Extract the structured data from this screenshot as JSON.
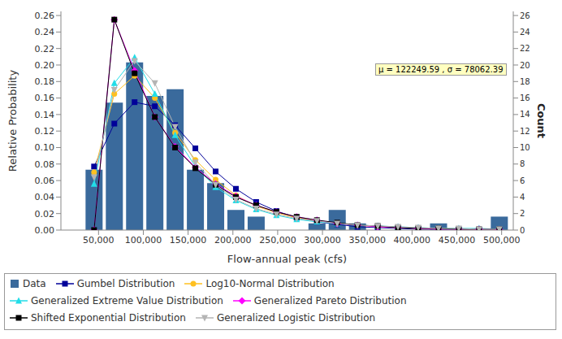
{
  "chart_data": {
    "type": "bar",
    "x_label": "Flow-annual peak (cfs)",
    "y_label": "Relative Probability",
    "y2_label": "Count",
    "annotation": "μ = 122249.59 , σ = 78062.39",
    "legend": "bottom",
    "bins": [
      33700,
      56320,
      78940,
      101560,
      124180,
      146800,
      169420,
      192040,
      214660,
      237280,
      259900,
      282520,
      305140,
      327760,
      350380,
      373000,
      395620,
      418240,
      440860,
      463480,
      486100,
      508720
    ],
    "xlim": [
      8000,
      513000
    ],
    "xticks": [
      {
        "value": 50000,
        "label": "50,000"
      },
      {
        "value": 100000,
        "label": "100,000"
      },
      {
        "value": 150000,
        "label": "150,000"
      },
      {
        "value": 200000,
        "label": "200,000"
      },
      {
        "value": 250000,
        "label": "250,000"
      },
      {
        "value": 300000,
        "label": "300,000"
      },
      {
        "value": 350000,
        "label": "350,000"
      },
      {
        "value": 400000,
        "label": "400,000"
      },
      {
        "value": 450000,
        "label": "450,000"
      },
      {
        "value": 500000,
        "label": "500,000"
      }
    ],
    "ylim": [
      0,
      0.265
    ],
    "yticks": [
      {
        "value": 0,
        "label": "0.00"
      },
      {
        "value": 0.02,
        "label": "0.02"
      },
      {
        "value": 0.04,
        "label": "0.04"
      },
      {
        "value": 0.06,
        "label": "0.06"
      },
      {
        "value": 0.08,
        "label": "0.08"
      },
      {
        "value": 0.1,
        "label": "0.10"
      },
      {
        "value": 0.12,
        "label": "0.12"
      },
      {
        "value": 0.14,
        "label": "0.14"
      },
      {
        "value": 0.16,
        "label": "0.16"
      },
      {
        "value": 0.18,
        "label": "0.18"
      },
      {
        "value": 0.2,
        "label": "0.20"
      },
      {
        "value": 0.22,
        "label": "0.22"
      },
      {
        "value": 0.24,
        "label": "0.24"
      },
      {
        "value": 0.26,
        "label": "0.26"
      }
    ],
    "y2lim": [
      0,
      26.5
    ],
    "y2ticks": [
      0,
      2,
      4,
      6,
      8,
      10,
      12,
      14,
      16,
      18,
      20,
      22,
      24,
      26
    ],
    "series": [
      {
        "name": "Data",
        "type": "bar",
        "color": "#3a6a9c",
        "values": [
          0.0732,
          0.1545,
          0.2033,
          0.1626,
          0.1707,
          0.0732,
          0.0569,
          0.0244,
          0.0163,
          0,
          0,
          0.0081,
          0.0244,
          0.0081,
          0,
          0,
          0,
          0.0081,
          0,
          0,
          0.0163
        ]
      },
      {
        "name": "Gumbel Distribution",
        "type": "line",
        "color": "#000099",
        "marker": "square",
        "values": [
          0.077,
          0.129,
          0.155,
          0.15,
          0.127,
          0.099,
          0.071,
          0.05,
          0.034,
          0.023,
          0.015,
          0.01,
          0.007,
          0.004,
          0.003,
          0.002,
          0.001,
          0.001,
          0.0005,
          0.0003,
          0.0002
        ]
      },
      {
        "name": "Log10-Normal Distribution",
        "type": "line",
        "color": "#ffc020",
        "marker": "circle",
        "values": [
          0.07,
          0.165,
          0.187,
          0.16,
          0.118,
          0.085,
          0.061,
          0.042,
          0.029,
          0.021,
          0.015,
          0.011,
          0.008,
          0.006,
          0.004,
          0.003,
          0.002,
          0.002,
          0.001,
          0.001,
          0.001
        ]
      },
      {
        "name": "Generalized Extreme Value Distribution",
        "type": "line",
        "color": "#22dde8",
        "marker": "triangle",
        "values": [
          0.056,
          0.178,
          0.209,
          0.165,
          0.115,
          0.077,
          0.052,
          0.036,
          0.025,
          0.018,
          0.013,
          0.01,
          0.008,
          0.006,
          0.005,
          0.004,
          0.003,
          0.002,
          0.002,
          0.002,
          0.001
        ]
      },
      {
        "name": "Generalized Pareto Distribution",
        "type": "line",
        "color": "#ff00ff",
        "marker": "diamond",
        "values": [
          0,
          0.255,
          0.193,
          0.137,
          0.101,
          0.076,
          0.056,
          0.041,
          0.03,
          0.022,
          0.016,
          0.012,
          0.008,
          0.006,
          0.004,
          0.003,
          0.002,
          0.001,
          0.001,
          0.001,
          0.0005
        ]
      },
      {
        "name": "Shifted Exponential Distribution",
        "type": "line",
        "color": "#000000",
        "marker": "square",
        "values": [
          0,
          0.255,
          0.19,
          0.137,
          0.1,
          0.075,
          0.055,
          0.04,
          0.03,
          0.022,
          0.016,
          0.012,
          0.009,
          0.006,
          0.005,
          0.003,
          0.002,
          0.002,
          0.001,
          0.001,
          0.001
        ]
      },
      {
        "name": "Generalized Logistic Distribution",
        "type": "line",
        "color": "#b4b4b4",
        "marker": "triangle-down",
        "values": [
          0.064,
          0.17,
          0.205,
          0.178,
          0.125,
          0.082,
          0.055,
          0.037,
          0.026,
          0.019,
          0.014,
          0.011,
          0.008,
          0.006,
          0.005,
          0.004,
          0.003,
          0.002,
          0.002,
          0.001,
          0.001
        ]
      }
    ]
  }
}
